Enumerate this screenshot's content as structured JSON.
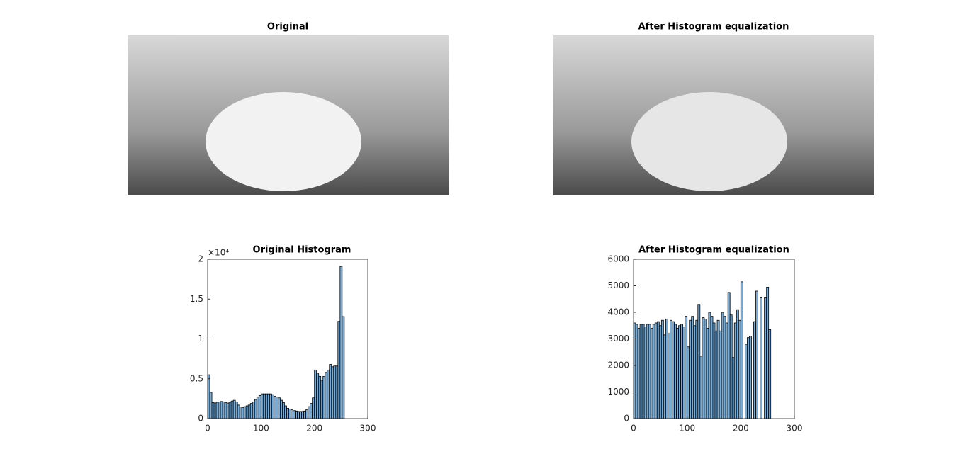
{
  "images": [
    {
      "title": "Original"
    },
    {
      "title": "After Histogram equalization"
    }
  ],
  "chart_data": [
    {
      "type": "histogram",
      "title": "Original Histogram",
      "color": "#77acd8",
      "bins": [
        0,
        4,
        8,
        12,
        16,
        20,
        24,
        28,
        32,
        36,
        40,
        44,
        48,
        52,
        56,
        60,
        64,
        68,
        72,
        76,
        80,
        84,
        88,
        92,
        96,
        100,
        104,
        108,
        112,
        116,
        120,
        124,
        128,
        132,
        136,
        140,
        144,
        148,
        152,
        156,
        160,
        164,
        168,
        172,
        176,
        180,
        184,
        188,
        192,
        196,
        200,
        204,
        208,
        212,
        216,
        220,
        224,
        228,
        232,
        236,
        240,
        244,
        248,
        252,
        256
      ],
      "counts": [
        5500,
        3300,
        2000,
        1950,
        2050,
        2100,
        2150,
        2100,
        2000,
        1950,
        2050,
        2200,
        2300,
        2100,
        1700,
        1450,
        1400,
        1500,
        1600,
        1700,
        1900,
        2100,
        2400,
        2700,
        2900,
        3100,
        3100,
        3100,
        3100,
        3100,
        3000,
        2800,
        2700,
        2600,
        2300,
        2000,
        1600,
        1300,
        1200,
        1100,
        1000,
        950,
        900,
        900,
        900,
        950,
        1100,
        1500,
        1900,
        2600,
        6100,
        5700,
        5300,
        4800,
        5300,
        5800,
        6100,
        6800,
        6500,
        6600,
        6600,
        12200,
        19100,
        12800
      ],
      "xlim": [
        0,
        300
      ],
      "xticks": [
        0,
        100,
        200,
        300
      ],
      "ylim": [
        0,
        20000
      ],
      "yticks": [
        0,
        {
          "value": 5000,
          "label": "0.5"
        },
        {
          "value": 10000,
          "label": "1"
        },
        {
          "value": 15000,
          "label": "1.5"
        },
        {
          "value": 20000,
          "label": "2"
        }
      ],
      "y_multiplier": "×10⁴"
    },
    {
      "type": "histogram",
      "title": "After Histogram equalization",
      "color": "#77acd8",
      "bins": [
        0,
        4,
        8,
        12,
        16,
        20,
        24,
        28,
        32,
        36,
        40,
        44,
        48,
        52,
        56,
        60,
        64,
        68,
        72,
        76,
        80,
        84,
        88,
        92,
        96,
        100,
        104,
        108,
        112,
        116,
        120,
        124,
        128,
        132,
        136,
        140,
        144,
        148,
        152,
        156,
        160,
        164,
        168,
        172,
        176,
        180,
        184,
        188,
        192,
        196,
        200,
        204,
        208,
        212,
        216,
        220,
        224,
        228,
        232,
        236,
        240,
        244,
        248,
        252,
        256
      ],
      "counts": [
        3600,
        3550,
        3400,
        3550,
        3550,
        3450,
        3550,
        3550,
        3400,
        3550,
        3600,
        3650,
        3500,
        3700,
        3150,
        3750,
        3200,
        3700,
        3650,
        3550,
        3400,
        3500,
        3550,
        3450,
        3850,
        2700,
        3700,
        3850,
        3500,
        3700,
        4300,
        2350,
        3800,
        3750,
        3400,
        4000,
        3850,
        3600,
        3300,
        3700,
        3300,
        4000,
        3850,
        3600,
        4750,
        3900,
        2300,
        3600,
        4100,
        3700,
        5150,
        0,
        2800,
        3050,
        3100,
        0,
        3650,
        4800,
        0,
        4550,
        0,
        4550,
        4950,
        3350
      ],
      "xlim": [
        0,
        300
      ],
      "xticks": [
        0,
        100,
        200,
        300
      ],
      "ylim": [
        0,
        6000
      ],
      "yticks": [
        0,
        1000,
        2000,
        3000,
        4000,
        5000,
        6000
      ]
    }
  ]
}
